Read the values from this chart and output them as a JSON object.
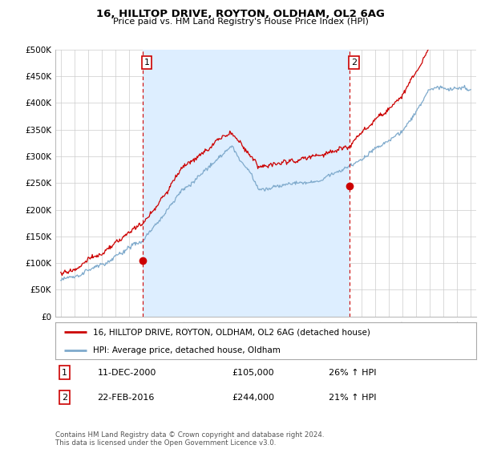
{
  "title": "16, HILLTOP DRIVE, ROYTON, OLDHAM, OL2 6AG",
  "subtitle": "Price paid vs. HM Land Registry's House Price Index (HPI)",
  "ylim": [
    0,
    500000
  ],
  "yticks": [
    0,
    50000,
    100000,
    150000,
    200000,
    250000,
    300000,
    350000,
    400000,
    450000,
    500000
  ],
  "ytick_labels": [
    "£0",
    "£50K",
    "£100K",
    "£150K",
    "£200K",
    "£250K",
    "£300K",
    "£350K",
    "£400K",
    "£450K",
    "£500K"
  ],
  "xlim_start": 1994.6,
  "xlim_end": 2025.4,
  "xticks": [
    1995,
    1996,
    1997,
    1998,
    1999,
    2000,
    2001,
    2002,
    2003,
    2004,
    2005,
    2006,
    2007,
    2008,
    2009,
    2010,
    2011,
    2012,
    2013,
    2014,
    2015,
    2016,
    2017,
    2018,
    2019,
    2020,
    2021,
    2022,
    2023,
    2024,
    2025
  ],
  "red_line_color": "#cc0000",
  "blue_line_color": "#7faacc",
  "fill_color": "#ddeeff",
  "vline_color": "#cc0000",
  "transaction1_x": 2001.0,
  "transaction1_y": 105000,
  "transaction2_x": 2016.15,
  "transaction2_y": 244000,
  "legend_line1": "16, HILLTOP DRIVE, ROYTON, OLDHAM, OL2 6AG (detached house)",
  "legend_line2": "HPI: Average price, detached house, Oldham",
  "table_row1_num": "1",
  "table_row1_date": "11-DEC-2000",
  "table_row1_price": "£105,000",
  "table_row1_hpi": "26% ↑ HPI",
  "table_row2_num": "2",
  "table_row2_date": "22-FEB-2016",
  "table_row2_price": "£244,000",
  "table_row2_hpi": "21% ↑ HPI",
  "footer": "Contains HM Land Registry data © Crown copyright and database right 2024.\nThis data is licensed under the Open Government Licence v3.0.",
  "background_color": "#ffffff",
  "grid_color": "#cccccc"
}
